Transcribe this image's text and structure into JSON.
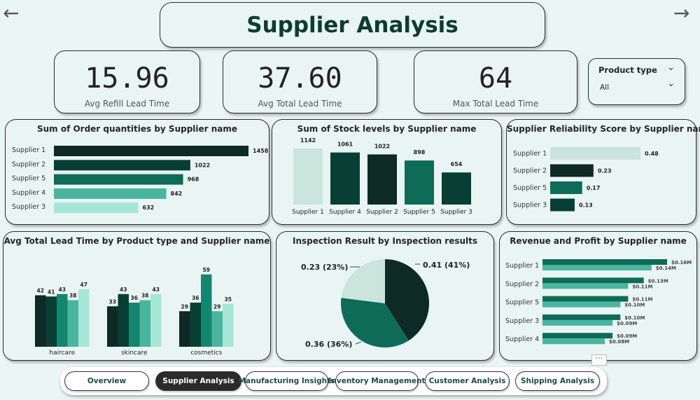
{
  "page_title": "Supplier Analysis",
  "nav_arrows": {
    "back_icon": "arrow-left-icon",
    "forward_icon": "arrow-right-icon"
  },
  "kpis": [
    {
      "value": "15.96",
      "label": "Avg Refill Lead Time"
    },
    {
      "value": "37.60",
      "label": "Avg Total Lead Time"
    },
    {
      "value": "64",
      "label": "Max Total Lead Time"
    }
  ],
  "filter": {
    "title": "Product type",
    "value": "All"
  },
  "colors": {
    "dark": "#0d2a25",
    "d2": "#073f35",
    "mid": "#0e6b58",
    "teal": "#14866f",
    "light": "#4ab59f",
    "pale": "#a6e6d6",
    "pale2": "#c9e5dc",
    "bg": "#eaf6f3"
  },
  "charts": {
    "order_qty": {
      "title": "Sum of Order quantities by Supplier name",
      "type": "bar",
      "categories": [
        "Supplier 1",
        "Supplier 2",
        "Supplier 5",
        "Supplier 4",
        "Supplier 3"
      ],
      "values": [
        1458,
        1022,
        968,
        842,
        632
      ],
      "labels": [
        "1458",
        "1022",
        "968",
        "842",
        "632"
      ],
      "colors": [
        "#0d2a25",
        "#073f35",
        "#0e6b58",
        "#4ab59f",
        "#a6e6d6"
      ]
    },
    "stock": {
      "title": "Sum of Stock levels by Supplier name",
      "type": "bar",
      "categories": [
        "Supplier 1",
        "Supplier 4",
        "Supplier 2",
        "Supplier 5",
        "Supplier 3"
      ],
      "values": [
        1142,
        1061,
        1022,
        898,
        654
      ],
      "labels": [
        "1142",
        "1061",
        "1022",
        "898",
        "654"
      ],
      "colors": [
        "#c9e5dc",
        "#073f35",
        "#0d2a25",
        "#0e6b58",
        "#073f35"
      ]
    },
    "reliability": {
      "title": "Supplier Reliability Score by Supplier name",
      "type": "bar",
      "categories": [
        "Supplier 1",
        "Supplier 2",
        "Supplier 5",
        "Supplier 3"
      ],
      "values": [
        0.48,
        0.23,
        0.17,
        0.13
      ],
      "labels": [
        "0.48",
        "0.23",
        "0.17",
        "0.13"
      ],
      "colors": [
        "#c9e5dc",
        "#0d2a25",
        "#0e6b58",
        "#073f35"
      ]
    },
    "lead_time": {
      "title": "Avg Total Lead Time by Product type and Supplier name",
      "type": "bar",
      "categories": [
        "haircare",
        "skincare",
        "cosmetics"
      ],
      "series": [
        {
          "values": [
            42,
            33,
            29
          ],
          "labels": [
            "42",
            "33",
            "29"
          ],
          "color": "#0d2a25"
        },
        {
          "values": [
            41,
            43,
            36
          ],
          "labels": [
            "41",
            "43",
            "36"
          ],
          "color": "#073f35"
        },
        {
          "values": [
            43,
            36,
            59
          ],
          "labels": [
            "43",
            "36",
            "59"
          ],
          "color": "#14866f"
        },
        {
          "values": [
            38,
            38,
            29
          ],
          "labels": [
            "38",
            "38",
            "29"
          ],
          "color": "#4ab59f"
        },
        {
          "values": [
            47,
            43,
            35
          ],
          "labels": [
            "47",
            "43",
            "35"
          ],
          "color": "#a6e6d6"
        }
      ]
    },
    "inspection": {
      "title": "Inspection Result by Inspection results",
      "type": "pie",
      "slices": [
        {
          "value": 0.41,
          "label": "0.41 (41%)",
          "color": "#0d2a25"
        },
        {
          "value": 0.36,
          "label": "0.36 (36%)",
          "color": "#0e6b58"
        },
        {
          "value": 0.23,
          "label": "0.23 (23%)",
          "color": "#c9e5dc"
        }
      ]
    },
    "revenue": {
      "title": "Revenue and Profit by Supplier name",
      "type": "bar",
      "categories": [
        "Supplier 1",
        "Supplier 2",
        "Supplier 5",
        "Supplier 3",
        "Supplier 4"
      ],
      "series": [
        {
          "values": [
            0.16,
            0.13,
            0.11,
            0.1,
            0.09
          ],
          "labels": [
            "$0.16M",
            "$0.13M",
            "$0.11M",
            "$0.10M",
            "$0.09M"
          ],
          "color": "#0e6b58"
        },
        {
          "values": [
            0.14,
            0.11,
            0.1,
            0.09,
            0.08
          ],
          "labels": [
            "$0.14M",
            "$0.11M",
            "$0.10M",
            "$0.09M",
            "$0.08M"
          ],
          "color": "#4ab59f"
        }
      ]
    }
  },
  "more_icon": "more-options-icon",
  "tabs": [
    {
      "label": "Overview",
      "active": false
    },
    {
      "label": "Supplier Analysis",
      "active": true
    },
    {
      "label": "Manufacturing Insights",
      "active": false
    },
    {
      "label": "Inventory Management",
      "active": false
    },
    {
      "label": "Customer Analysis",
      "active": false
    },
    {
      "label": "Shipping Analysis",
      "active": false
    }
  ]
}
